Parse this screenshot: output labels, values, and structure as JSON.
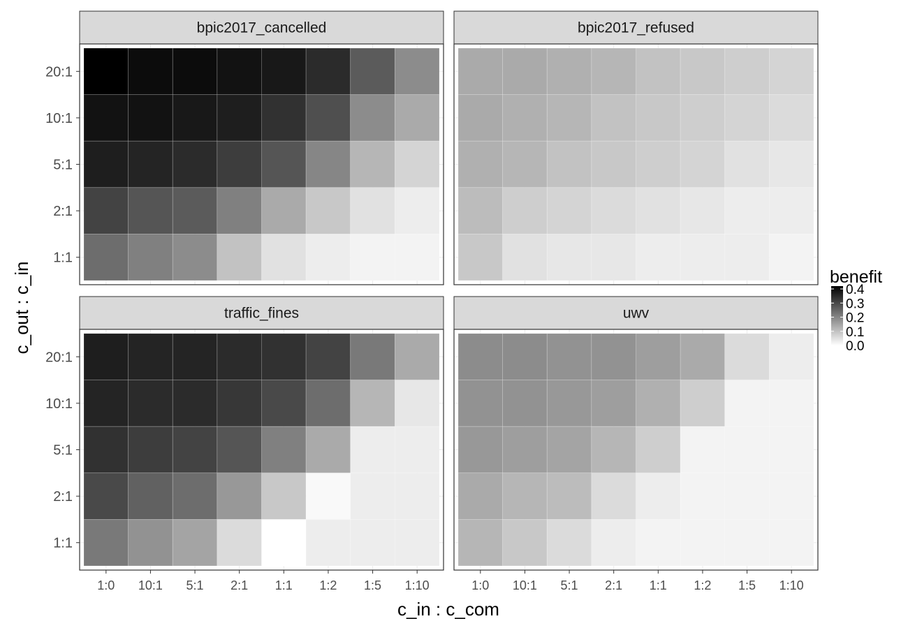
{
  "chart_data": {
    "type": "heatmap",
    "xlabel": "c_in : c_com",
    "ylabel": "c_out : c_in",
    "x_categories": [
      "1:0",
      "10:1",
      "5:1",
      "2:1",
      "1:1",
      "1:2",
      "1:5",
      "1:10"
    ],
    "y_categories": [
      "20:1",
      "10:1",
      "5:1",
      "2:1",
      "1:1"
    ],
    "legend": {
      "title": "benefit",
      "position": "right",
      "range": [
        0.0,
        0.42
      ],
      "ticks": [
        "0.0",
        "0.1",
        "0.2",
        "0.3",
        "0.4"
      ],
      "low_color": "#ffffff",
      "high_color": "#000000"
    },
    "grid": true,
    "panels": [
      {
        "name": "bpic2017_cancelled",
        "values": [
          [
            0.42,
            0.4,
            0.4,
            0.39,
            0.38,
            0.35,
            0.27,
            0.19
          ],
          [
            0.39,
            0.39,
            0.38,
            0.37,
            0.34,
            0.29,
            0.19,
            0.14
          ],
          [
            0.37,
            0.36,
            0.35,
            0.32,
            0.28,
            0.2,
            0.12,
            0.07
          ],
          [
            0.31,
            0.28,
            0.27,
            0.21,
            0.14,
            0.09,
            0.05,
            0.03
          ],
          [
            0.24,
            0.21,
            0.19,
            0.1,
            0.05,
            0.03,
            0.02,
            0.02
          ]
        ]
      },
      {
        "name": "bpic2017_refused",
        "values": [
          [
            0.14,
            0.14,
            0.13,
            0.12,
            0.1,
            0.09,
            0.08,
            0.07
          ],
          [
            0.14,
            0.13,
            0.12,
            0.1,
            0.09,
            0.08,
            0.07,
            0.06
          ],
          [
            0.13,
            0.12,
            0.1,
            0.09,
            0.08,
            0.07,
            0.05,
            0.04
          ],
          [
            0.11,
            0.08,
            0.07,
            0.06,
            0.05,
            0.04,
            0.03,
            0.03
          ],
          [
            0.09,
            0.05,
            0.04,
            0.04,
            0.03,
            0.03,
            0.03,
            0.02
          ]
        ]
      },
      {
        "name": "traffic_fines",
        "values": [
          [
            0.37,
            0.36,
            0.36,
            0.35,
            0.34,
            0.31,
            0.22,
            0.14
          ],
          [
            0.36,
            0.35,
            0.35,
            0.33,
            0.3,
            0.24,
            0.12,
            0.04
          ],
          [
            0.34,
            0.32,
            0.31,
            0.28,
            0.21,
            0.14,
            0.03,
            0.03
          ],
          [
            0.3,
            0.26,
            0.24,
            0.17,
            0.09,
            0.01,
            0.03,
            0.03
          ],
          [
            0.22,
            0.18,
            0.15,
            0.06,
            0.0,
            0.03,
            0.03,
            0.03
          ]
        ]
      },
      {
        "name": "uwv",
        "values": [
          [
            0.19,
            0.19,
            0.18,
            0.18,
            0.16,
            0.14,
            0.06,
            0.03
          ],
          [
            0.18,
            0.18,
            0.17,
            0.16,
            0.13,
            0.08,
            0.02,
            0.02
          ],
          [
            0.17,
            0.16,
            0.15,
            0.12,
            0.08,
            0.02,
            0.02,
            0.02
          ],
          [
            0.14,
            0.12,
            0.11,
            0.06,
            0.03,
            0.02,
            0.02,
            0.02
          ],
          [
            0.12,
            0.09,
            0.06,
            0.03,
            0.02,
            0.02,
            0.02,
            0.02
          ]
        ]
      }
    ]
  }
}
